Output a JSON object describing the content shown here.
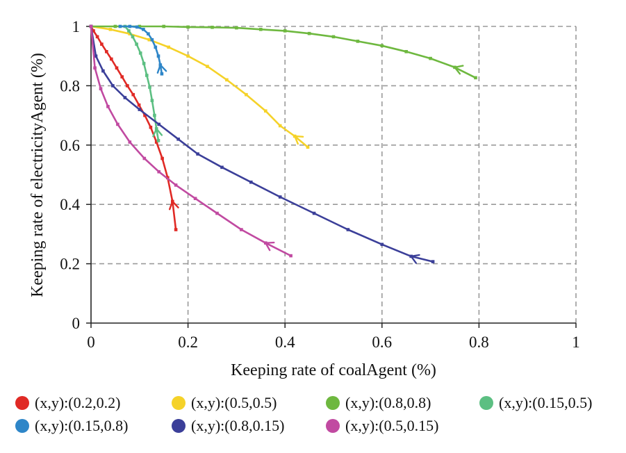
{
  "chart_data": {
    "type": "line",
    "title": "",
    "xlabel": "Keeping rate of coalAgent (%)",
    "ylabel": "Keeping rate of electricityAgent (%)",
    "xlim": [
      0,
      1
    ],
    "ylim": [
      0,
      1
    ],
    "xticks": [
      "0",
      "0.2",
      "0.4",
      "0.6",
      "0.8",
      "1"
    ],
    "yticks": [
      "0",
      "0.2",
      "0.4",
      "0.6",
      "0.8",
      "1"
    ],
    "grid": true,
    "legend_position": "bottom",
    "series": [
      {
        "name": "(x,y):(0.2,0.2)",
        "color": "#e02a25",
        "x": [
          0.0,
          0.005,
          0.013,
          0.022,
          0.032,
          0.042,
          0.053,
          0.064,
          0.075,
          0.087,
          0.099,
          0.111,
          0.123,
          0.135,
          0.147,
          0.158,
          0.168,
          0.175
        ],
        "y": [
          1.0,
          0.985,
          0.965,
          0.94,
          0.915,
          0.89,
          0.86,
          0.83,
          0.8,
          0.77,
          0.735,
          0.7,
          0.66,
          0.61,
          0.555,
          0.49,
          0.41,
          0.315
        ]
      },
      {
        "name": "(x,y):(0.5,0.5)",
        "color": "#f5d229",
        "x": [
          0.0,
          0.04,
          0.08,
          0.12,
          0.16,
          0.2,
          0.24,
          0.28,
          0.32,
          0.36,
          0.39,
          0.42,
          0.447
        ],
        "y": [
          1.0,
          0.99,
          0.975,
          0.955,
          0.93,
          0.9,
          0.865,
          0.82,
          0.77,
          0.715,
          0.665,
          0.63,
          0.593
        ]
      },
      {
        "name": "(x,y):(0.8,0.8)",
        "color": "#6eb83f",
        "x": [
          0.0,
          0.05,
          0.1,
          0.15,
          0.2,
          0.25,
          0.3,
          0.35,
          0.4,
          0.45,
          0.5,
          0.55,
          0.6,
          0.65,
          0.7,
          0.75,
          0.793
        ],
        "y": [
          1.0,
          1.0,
          1.0,
          1.0,
          0.998,
          0.997,
          0.995,
          0.99,
          0.985,
          0.976,
          0.965,
          0.95,
          0.935,
          0.915,
          0.892,
          0.862,
          0.827
        ]
      },
      {
        "name": "(x,y):(0.15,0.5)",
        "color": "#5cbf82",
        "x": [
          0.07,
          0.078,
          0.086,
          0.094,
          0.102,
          0.109,
          0.115,
          0.121,
          0.126,
          0.131,
          0.135,
          0.139
        ],
        "y": [
          1.0,
          0.985,
          0.965,
          0.94,
          0.91,
          0.875,
          0.835,
          0.795,
          0.75,
          0.7,
          0.655,
          0.615
        ]
      },
      {
        "name": "(x,y):(0.15,0.8)",
        "color": "#2e86c8",
        "x": [
          0.06,
          0.08,
          0.095,
          0.108,
          0.118,
          0.126,
          0.133,
          0.139,
          0.143,
          0.146
        ],
        "y": [
          1.0,
          1.0,
          0.998,
          0.99,
          0.975,
          0.955,
          0.93,
          0.9,
          0.87,
          0.84
        ]
      },
      {
        "name": "(x,y):(0.8,0.15)",
        "color": "#3b3f99",
        "x": [
          0.0,
          0.01,
          0.025,
          0.045,
          0.07,
          0.1,
          0.14,
          0.18,
          0.22,
          0.27,
          0.33,
          0.39,
          0.46,
          0.53,
          0.6,
          0.66,
          0.705
        ],
        "y": [
          1.0,
          0.9,
          0.85,
          0.8,
          0.76,
          0.72,
          0.67,
          0.62,
          0.57,
          0.525,
          0.475,
          0.425,
          0.37,
          0.315,
          0.265,
          0.225,
          0.207
        ]
      },
      {
        "name": "(x,y):(0.5,0.15)",
        "color": "#c14aa1",
        "x": [
          0.0,
          0.008,
          0.02,
          0.035,
          0.055,
          0.08,
          0.11,
          0.14,
          0.175,
          0.215,
          0.26,
          0.31,
          0.36,
          0.412
        ],
        "y": [
          1.0,
          0.86,
          0.79,
          0.73,
          0.67,
          0.61,
          0.555,
          0.51,
          0.465,
          0.42,
          0.37,
          0.315,
          0.27,
          0.227
        ]
      }
    ]
  }
}
